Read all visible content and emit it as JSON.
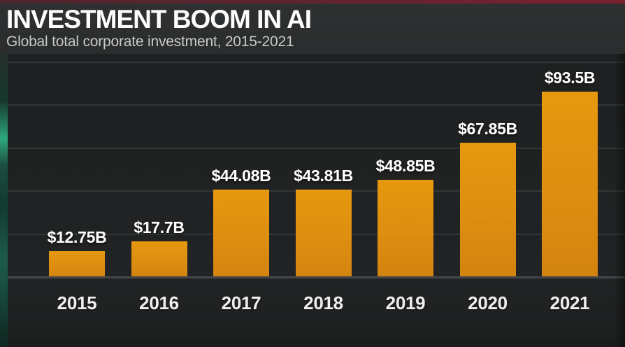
{
  "header": {
    "title": "INVESTMENT BOOM IN AI",
    "subtitle": "Global total corporate investment, 2015-2021"
  },
  "chart_data": {
    "type": "bar",
    "title": "INVESTMENT BOOM IN AI",
    "subtitle": "Global total corporate investment, 2015-2021",
    "categories": [
      "2015",
      "2016",
      "2017",
      "2018",
      "2019",
      "2020",
      "2021"
    ],
    "values": [
      12.75,
      17.7,
      44.08,
      43.81,
      48.85,
      67.85,
      93.5
    ],
    "value_labels": [
      "$12.75B",
      "$17.7B",
      "$44.08B",
      "$43.81B",
      "$48.85B",
      "$67.85B",
      "$93.5B"
    ],
    "xlabel": "",
    "ylabel": "",
    "ylim": [
      0,
      100
    ],
    "grid": "horizontal, unlabeled",
    "legend": "none",
    "bar_color": "#de8e10",
    "background_color": "#202223",
    "accent_bar_color": "#7c1f2e",
    "text_color": "#ffffff"
  }
}
